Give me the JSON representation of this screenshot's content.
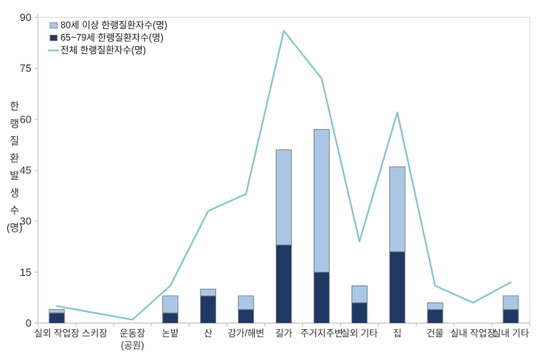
{
  "chart_data": {
    "type": "bar",
    "subtype": "stacked-bars-with-total-line",
    "title": "",
    "categories": [
      "실외 작업장",
      "스키장",
      "운동장\n(공원)",
      "논밭",
      "산",
      "강가/해변",
      "길가",
      "주거지주변",
      "실외 기타",
      "집",
      "건물",
      "실내 작업장",
      "실내 기타"
    ],
    "bar_series": [
      {
        "name": "80세 이상 한랭질환자수(명)",
        "stack_position": "top",
        "color": "#A9C7E5",
        "border": "#808080",
        "values": [
          1,
          0,
          0,
          5,
          2,
          4,
          28,
          42,
          5,
          25,
          2,
          0,
          4
        ]
      },
      {
        "name": "65~79세 한랭질환자수(명)",
        "stack_position": "bottom",
        "color": "#1F3864",
        "border": "#808080",
        "values": [
          3,
          0,
          0,
          3,
          8,
          4,
          23,
          15,
          6,
          21,
          4,
          0,
          4
        ]
      }
    ],
    "line_series": {
      "name": "전체 한랭질환자수(명)",
      "color": "#8EC6CF",
      "values": [
        5,
        3,
        1,
        11,
        33,
        38,
        86,
        72,
        24,
        62,
        11,
        6,
        12
      ]
    },
    "stack_totals": [
      4,
      0,
      0,
      8,
      10,
      8,
      51,
      57,
      11,
      46,
      6,
      0,
      8
    ],
    "xlabel": "",
    "ylabel": "한랭질환발생수(명)",
    "ylabel_chars": [
      "한",
      "랭",
      "질",
      "환",
      "발",
      "생",
      "수",
      "(명)"
    ],
    "ylim": [
      0,
      90
    ],
    "yticks": [
      0,
      15,
      30,
      45,
      60,
      75,
      90
    ],
    "grid": false,
    "legend_position": "top-left-inside",
    "legend_order": [
      "80세 이상 한랭질환자수(명)",
      "65~79세 한랭질환자수(명)",
      "전체 한랭질환자수(명)"
    ],
    "colors": {
      "axis": "#BFBFBF",
      "plot_border": "#D9D9D9",
      "tick_text": "#333333",
      "legend_text": "#1a1a1a",
      "background": "#ffffff"
    }
  }
}
